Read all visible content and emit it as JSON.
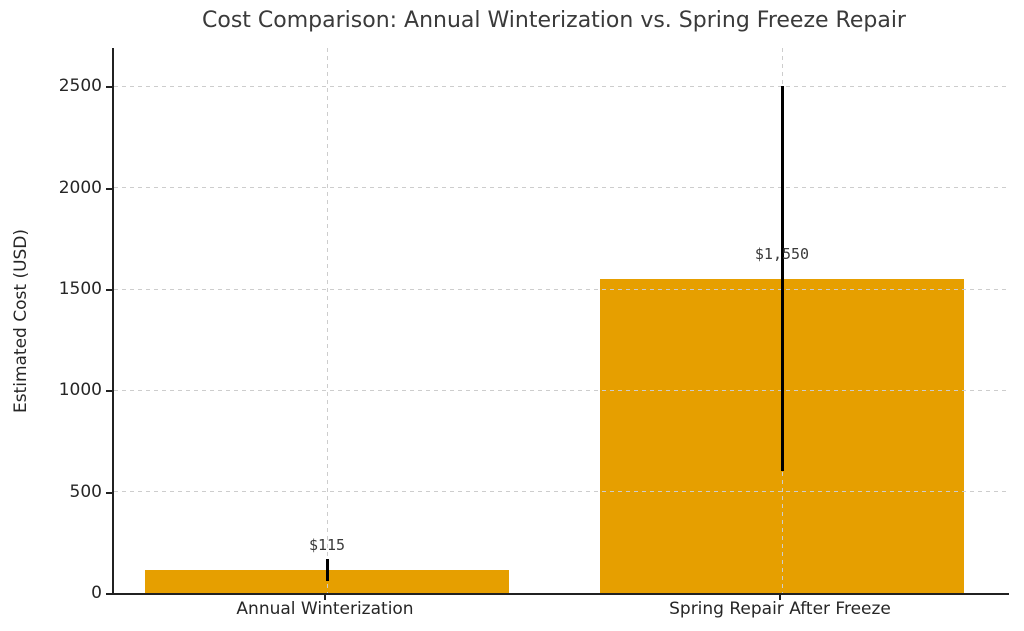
{
  "chart_data": {
    "type": "bar",
    "title": "Cost Comparison: Annual Winterization vs. Spring Freeze Repair",
    "xlabel": "",
    "ylabel": "Estimated Cost (USD)",
    "categories": [
      "Annual Winterization",
      "Spring Repair After Freeze"
    ],
    "values": [
      115,
      1550
    ],
    "value_labels": [
      "$115",
      "$1,550"
    ],
    "error_low": [
      60,
      600
    ],
    "error_high": [
      170,
      2500
    ],
    "yticks": [
      0,
      500,
      1000,
      1500,
      2000,
      2500
    ],
    "ylim": [
      0,
      2690
    ],
    "grid": true,
    "grid_style": "dashed",
    "legend": "none",
    "bar_color": "#e69f00",
    "error_bar_color": "#000000",
    "grid_color": "#cdcdcd",
    "axis_color": "#212121",
    "title_color": "#3a3a3a"
  }
}
